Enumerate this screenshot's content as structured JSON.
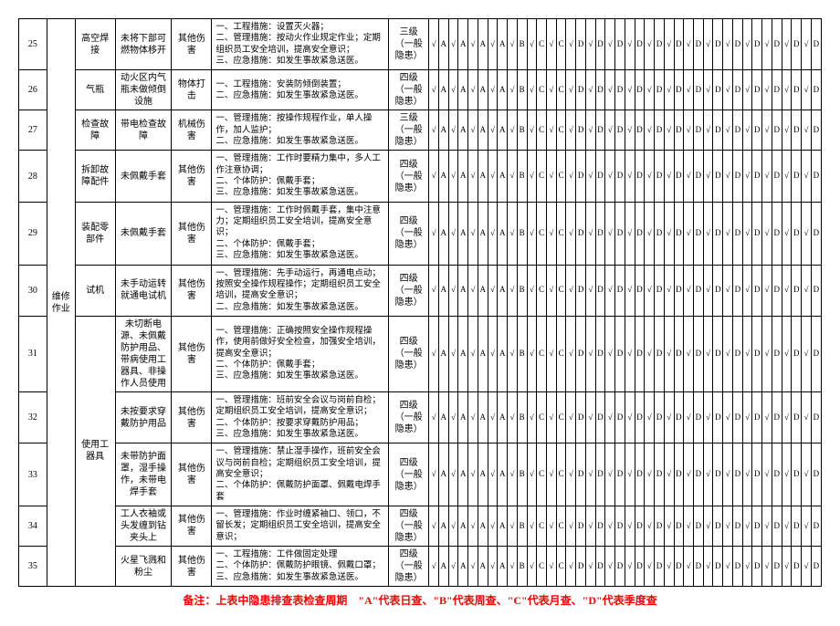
{
  "footnote": "备注：上表中隐患排查表检查周期　\"A\"代表日查、\"B\"代表周查、\"C\"代表月查、\"D\"代表季度查",
  "footnote_color": "#ff0000",
  "operation_label": "维修作业",
  "groups": {
    "g1": "高空焊接",
    "g2": "气瓶",
    "g3": "检查故障",
    "g4": "拆卸故障配件",
    "g5": "装配零部件",
    "g6": "试机",
    "g7": "使用工器具"
  },
  "rows": [
    {
      "n": "25",
      "risk": "未将下部可燃物体移开",
      "hazard": "其他伤害",
      "desc": "一、工程措施：设置灭火器；\n二、管理措施：按动火作业规定作业；定期组织员工安全培训，提高安全意识；\n三、应急措施：如发生事故紧急送医。",
      "lvl": "三级（一般隐患）",
      "c": [
        "A",
        "A",
        "A",
        "A",
        "B",
        "C",
        "C",
        "D",
        "D",
        "D",
        "D",
        "D",
        "D",
        "D",
        "D",
        "D",
        "D",
        "D",
        "D",
        "D"
      ]
    },
    {
      "n": "26",
      "risk": "动火区内气瓶未做倾倒设施",
      "hazard": "物体打击",
      "desc": "一、工程措施：安装防倾倒装置；\n二、应急措施：如发生事故紧急送医。",
      "lvl": "四级（一般隐患）",
      "c": [
        "A",
        "A",
        "A",
        "A",
        "B",
        "C",
        "C",
        "D",
        "D",
        "D",
        "D",
        "D",
        "D",
        "D",
        "D",
        "D",
        "D",
        "D",
        "D",
        "D"
      ]
    },
    {
      "n": "27",
      "risk": "带电检查故障",
      "hazard": "机械伤害",
      "desc": "一、管理措施：按操作规程作业，单人操作，加人监护；\n二、应急措施：如发生事故紧急送医。",
      "lvl": "三级（一般隐患）",
      "c": [
        "A",
        "A",
        "A",
        "A",
        "B",
        "C",
        "C",
        "D",
        "D",
        "D",
        "D",
        "D",
        "D",
        "D",
        "D",
        "D",
        "D",
        "D",
        "D",
        "D"
      ]
    },
    {
      "n": "28",
      "risk": "未佩戴手套",
      "hazard": "其他伤害",
      "desc": "一、管理措施：工作时要精力集中，多人工作注意协调；\n二、个体防护：佩戴手套；\n三、应急措施：如发生事故紧急送医。",
      "lvl": "四级（一般隐患）",
      "c": [
        "A",
        "A",
        "A",
        "A",
        "B",
        "C",
        "C",
        "D",
        "D",
        "D",
        "D",
        "D",
        "D",
        "D",
        "D",
        "D",
        "D",
        "D",
        "D",
        "D"
      ]
    },
    {
      "n": "29",
      "risk": "未佩戴手套",
      "hazard": "其他伤害",
      "desc": "一、管理措施：工作时佩戴手套，集中注意力；定期组织员工安全培训，提高安全意识；\n二、个体防护：佩戴手套；\n三、应急措施：如发生事故紧急送医。",
      "lvl": "四级（一般隐患）",
      "c": [
        "A",
        "A",
        "A",
        "A",
        "B",
        "C",
        "C",
        "D",
        "D",
        "D",
        "D",
        "D",
        "D",
        "D",
        "D",
        "D",
        "D",
        "D",
        "D",
        "D"
      ]
    },
    {
      "n": "30",
      "risk": "未手动运转就通电试机",
      "hazard": "其他伤害",
      "desc": "一、管理措施：先手动运行，再通电点动；按照安全操作规程操作；定期组织员工安全培训，提高安全意识；\n二、应急措施：如发生事故紧急送医。",
      "lvl": "四级（一般隐患）",
      "c": [
        "A",
        "A",
        "A",
        "A",
        "B",
        "C",
        "C",
        "D",
        "D",
        "D",
        "D",
        "D",
        "D",
        "D",
        "D",
        "D",
        "D",
        "D",
        "D",
        "D"
      ]
    },
    {
      "n": "31",
      "risk": "未切断电源、未佩戴防护用品、带病使用工器具、非操作人员使用",
      "hazard": "其他伤害",
      "desc": "一、管理措施：正确按照安全操作规程操作，使用前做好安全检查，加强安全培训，提高安全意识；\n二、个体防护：佩戴手套；\n三、应急措施：如发生事故紧急送医。",
      "lvl": "四级（一般隐患）",
      "c": [
        "A",
        "A",
        "A",
        "A",
        "B",
        "C",
        "C",
        "D",
        "D",
        "D",
        "D",
        "D",
        "D",
        "D",
        "D",
        "D",
        "D",
        "D",
        "D",
        "D"
      ]
    },
    {
      "n": "32",
      "risk": "未按要求穿戴防护用品",
      "hazard": "其他伤害",
      "desc": "一、管理措施：班前安全会议与岗前自检；定期组织员工安全培训，提高安全意识；\n二、个体防护：按要求穿戴防护用品；\n三、应急措施：如发生事故紧急送医。",
      "lvl": "四级（一般隐患）",
      "c": [
        "A",
        "A",
        "A",
        "A",
        "B",
        "C",
        "C",
        "D",
        "D",
        "D",
        "D",
        "D",
        "D",
        "D",
        "D",
        "D",
        "D",
        "D",
        "D",
        "D"
      ]
    },
    {
      "n": "33",
      "risk": "未带防护面罩，湿手操作，未带电焊手套",
      "hazard": "其他伤害",
      "desc": "一、管理措施：禁止湿手操作，班前安全会议与岗前自检；定期组织员工安全培训，提高安全意识；\n二、个体防护：佩戴防护面罩、佩戴电焊手套",
      "lvl": "四级（一般隐患）",
      "c": [
        "A",
        "A",
        "A",
        "A",
        "B",
        "C",
        "C",
        "D",
        "D",
        "D",
        "D",
        "D",
        "D",
        "D",
        "D",
        "D",
        "D",
        "D",
        "D",
        "D"
      ]
    },
    {
      "n": "34",
      "risk": "工人衣袖或头发缠到钻夹头上",
      "hazard": "其他伤害",
      "desc": "一、管理措施：作业时缠紧袖口、领口，不留长发；定期组织员工安全培训，提高安全意识；",
      "lvl": "四级（一般隐患）",
      "c": [
        "A",
        "A",
        "A",
        "A",
        "B",
        "C",
        "C",
        "D",
        "D",
        "D",
        "D",
        "D",
        "D",
        "D",
        "D",
        "D",
        "D",
        "D",
        "D",
        "D"
      ]
    },
    {
      "n": "35",
      "risk": "火星飞溅和粉尘",
      "hazard": "其他伤害",
      "desc": "一、工程措施：工件做固定处理\n二、个体防护：佩戴防护眼镜、佩戴口罩；\n三、应急措施：如发生事故紧急送医。",
      "lvl": "四级（一般隐患）",
      "c": [
        "A",
        "A",
        "A",
        "A",
        "B",
        "C",
        "C",
        "D",
        "D",
        "D",
        "D",
        "D",
        "D",
        "D",
        "D",
        "D",
        "D",
        "D",
        "D",
        "D"
      ]
    }
  ]
}
